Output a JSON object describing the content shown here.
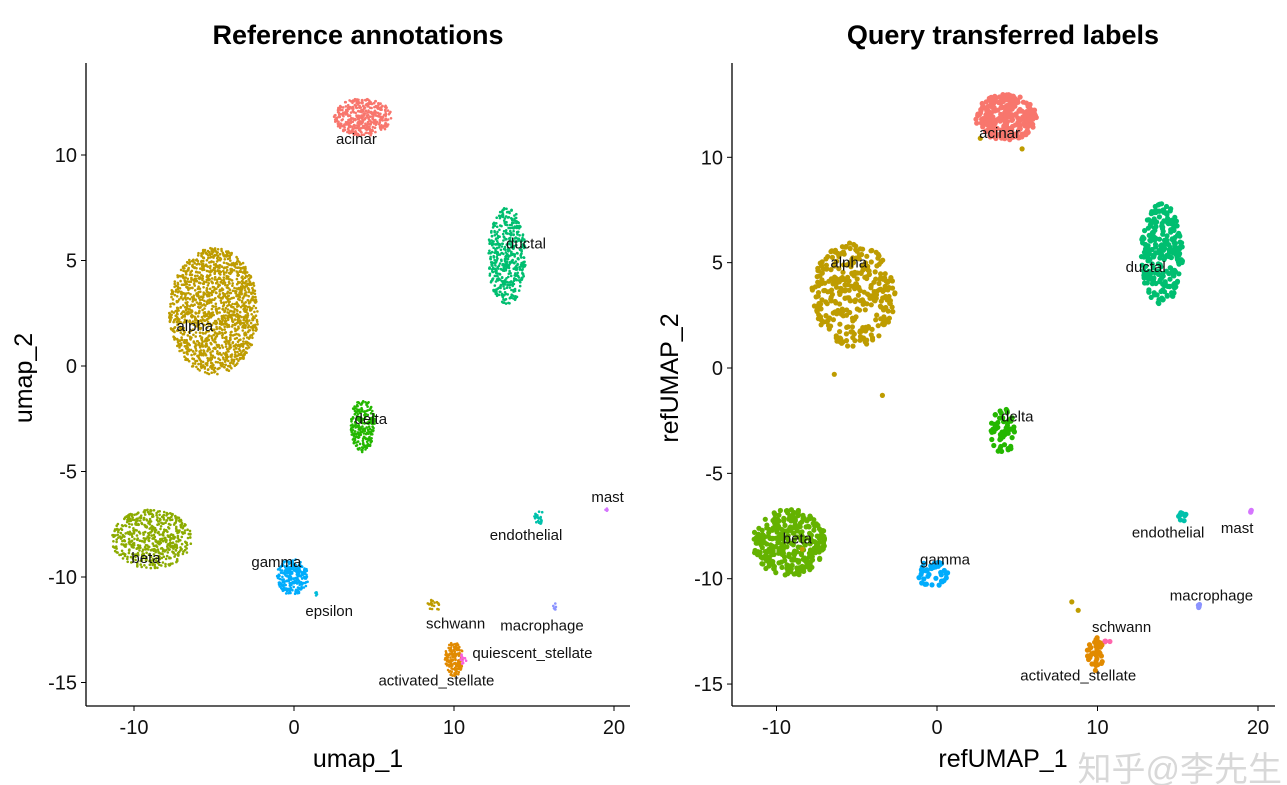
{
  "chart_data": [
    {
      "type": "scatter",
      "title": "Reference annotations",
      "xlabel": "umap_1",
      "ylabel": "umap_2",
      "xlim": [
        -13,
        21
      ],
      "ylim": [
        -16.1,
        14.3
      ],
      "xticks": [
        -10,
        0,
        10,
        20
      ],
      "yticks": [
        -15,
        -10,
        -5,
        0,
        5,
        10
      ],
      "grid": false,
      "legend": "none",
      "point_style": "small",
      "clusters": [
        {
          "name": "acinar",
          "color": "#F8766D",
          "center": [
            4.3,
            11.8
          ],
          "spread": [
            1.8,
            0.9
          ],
          "n": 420,
          "label_pos": [
            3.9,
            10.75
          ]
        },
        {
          "name": "ductal",
          "color": "#00BE70",
          "center": [
            13.3,
            5.2
          ],
          "spread": [
            1.2,
            2.3
          ],
          "n": 500,
          "label_pos": [
            14.5,
            5.8
          ]
        },
        {
          "name": "alpha",
          "color": "#BE9C00",
          "center": [
            -5.0,
            2.6
          ],
          "spread": [
            2.8,
            3.0
          ],
          "n": 1500,
          "label_pos": [
            -6.2,
            1.9
          ]
        },
        {
          "name": "delta",
          "color": "#24B700",
          "center": [
            4.3,
            -2.8
          ],
          "spread": [
            0.75,
            1.3
          ],
          "n": 220,
          "label_pos": [
            4.8,
            -2.5
          ]
        },
        {
          "name": "beta",
          "color": "#8CAB00",
          "center": [
            -8.9,
            -8.2
          ],
          "spread": [
            2.5,
            1.4
          ],
          "n": 550,
          "label_pos": [
            -9.25,
            -9.1
          ]
        },
        {
          "name": "gamma",
          "color": "#00ACFC",
          "center": [
            -0.1,
            -10.0
          ],
          "spread": [
            1.0,
            0.85
          ],
          "n": 260,
          "label_pos": [
            -1.1,
            -9.3
          ]
        },
        {
          "name": "epsilon",
          "color": "#00BBDA",
          "center": [
            1.4,
            -10.8
          ],
          "spread": [
            0.15,
            0.12
          ],
          "n": 6,
          "label_pos": [
            2.2,
            -11.6
          ]
        },
        {
          "name": "endothelial",
          "color": "#00C1AB",
          "center": [
            15.3,
            -7.15
          ],
          "spread": [
            0.3,
            0.35
          ],
          "n": 25,
          "label_pos": [
            14.5,
            -8.0
          ]
        },
        {
          "name": "mast",
          "color": "#D575FE",
          "center": [
            19.5,
            -6.8
          ],
          "spread": [
            0.12,
            0.1
          ],
          "n": 4,
          "label_pos": [
            19.6,
            -6.2
          ]
        },
        {
          "name": "macrophage",
          "color": "#8B93FF",
          "center": [
            16.3,
            -11.4
          ],
          "spread": [
            0.15,
            0.15
          ],
          "n": 6,
          "label_pos": [
            15.5,
            -12.3
          ]
        },
        {
          "name": "schwann",
          "color": "#BE9C00",
          "center": [
            8.7,
            -11.35
          ],
          "spread": [
            0.4,
            0.35
          ],
          "n": 20,
          "label_pos": [
            10.1,
            -12.2
          ]
        },
        {
          "name": "activated_stellate",
          "color": "#E18A00",
          "center": [
            10.0,
            -13.9
          ],
          "spread": [
            0.6,
            0.8
          ],
          "n": 160,
          "label_pos": [
            8.9,
            -14.9
          ]
        },
        {
          "name": "quiescent_stellate",
          "color": "#F962DD",
          "center": [
            10.6,
            -13.9
          ],
          "spread": [
            0.2,
            0.3
          ],
          "n": 12,
          "label_pos": [
            14.9,
            -13.6
          ]
        }
      ]
    },
    {
      "type": "scatter",
      "title": "Query transferred labels",
      "xlabel": "refUMAP_1",
      "ylabel": "refUMAP_2",
      "xlim": [
        -12.8,
        21.1
      ],
      "ylim": [
        -16.0,
        14.5
      ],
      "xticks": [
        -10,
        0,
        10,
        20
      ],
      "yticks": [
        -15,
        -10,
        -5,
        0,
        5,
        10
      ],
      "grid": false,
      "legend": "none",
      "point_style": "large",
      "clusters": [
        {
          "name": "acinar",
          "color": "#F8766D",
          "center": [
            4.3,
            11.9
          ],
          "spread": [
            1.9,
            1.1
          ],
          "n": 260,
          "label_pos": [
            3.9,
            11.15
          ]
        },
        {
          "name": "ductal",
          "color": "#00BE70",
          "center": [
            14.0,
            5.4
          ],
          "spread": [
            1.3,
            2.4
          ],
          "n": 260,
          "label_pos": [
            13.0,
            4.8
          ]
        },
        {
          "name": "alpha",
          "color": "#BE9C00",
          "center": [
            -5.2,
            3.5
          ],
          "spread": [
            2.6,
            2.5
          ],
          "n": 330,
          "label_pos": [
            -5.5,
            5.0
          ]
        },
        {
          "name": "delta",
          "color": "#24B700",
          "center": [
            4.1,
            -3.0
          ],
          "spread": [
            0.8,
            1.1
          ],
          "n": 60,
          "label_pos": [
            5.0,
            -2.3
          ]
        },
        {
          "name": "beta",
          "color": "#64B200",
          "center": [
            -9.2,
            -8.3
          ],
          "spread": [
            2.3,
            1.6
          ],
          "n": 320,
          "label_pos": [
            -8.7,
            -8.1
          ]
        },
        {
          "name": "gamma",
          "color": "#00ACFC",
          "center": [
            -0.3,
            -9.8
          ],
          "spread": [
            1.0,
            0.65
          ],
          "n": 40,
          "label_pos": [
            0.5,
            -9.1
          ]
        },
        {
          "name": "endothelial",
          "color": "#00C1AB",
          "center": [
            15.3,
            -7.1
          ],
          "spread": [
            0.3,
            0.3
          ],
          "n": 10,
          "label_pos": [
            14.4,
            -7.8
          ]
        },
        {
          "name": "mast",
          "color": "#D575FE",
          "center": [
            19.5,
            -6.8
          ],
          "spread": [
            0.1,
            0.08
          ],
          "n": 3,
          "label_pos": [
            18.7,
            -7.6
          ]
        },
        {
          "name": "macrophage",
          "color": "#8B93FF",
          "center": [
            16.3,
            -11.3
          ],
          "spread": [
            0.1,
            0.12
          ],
          "n": 4,
          "label_pos": [
            17.1,
            -10.8
          ]
        },
        {
          "name": "schwann",
          "color": "#FF65AC",
          "center": [
            10.6,
            -13.0
          ],
          "spread": [
            0.2,
            0.08
          ],
          "n": 4,
          "label_pos": [
            11.5,
            -12.3
          ]
        },
        {
          "name": "activated_stellate",
          "color": "#E18A00",
          "center": [
            9.9,
            -13.6
          ],
          "spread": [
            0.55,
            0.85
          ],
          "n": 40,
          "label_pos": [
            8.8,
            -14.6
          ]
        },
        {
          "name": "alpha_outliers",
          "color": "#BE9C00",
          "points": [
            [
              -6.4,
              -0.3
            ],
            [
              -3.4,
              -1.3
            ],
            [
              -8.4,
              -8.6
            ],
            [
              8.4,
              -11.1
            ],
            [
              8.8,
              -11.5
            ],
            [
              2.7,
              10.9
            ],
            [
              5.3,
              10.4
            ]
          ]
        }
      ]
    }
  ],
  "watermark": "知乎@李先生"
}
